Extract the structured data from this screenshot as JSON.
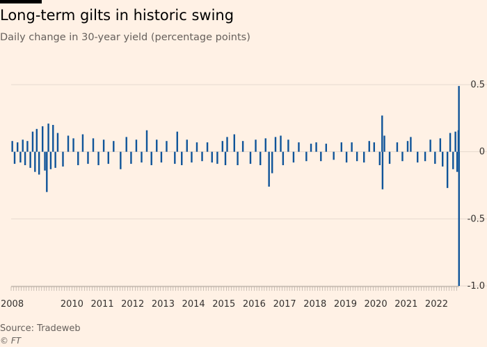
{
  "header": {
    "title": "Long-term gilts in historic swing",
    "subtitle": "Daily change in 30-year yield (percentage points)"
  },
  "footer": {
    "source": "Source: Tradeweb",
    "copyright": "© FT"
  },
  "colors": {
    "background": "#fff1e5",
    "series": "#0f5499",
    "grid": "#e6d9ce",
    "text": "#33302e"
  },
  "chart_data": {
    "type": "bar",
    "title": "Long-term gilts in historic swing",
    "subtitle": "Daily change in 30-year yield (percentage points)",
    "xlabel": "",
    "ylabel": "",
    "ylim": [
      -1.0,
      0.5
    ],
    "xlim": [
      "2008-01-01",
      "2022-09-30"
    ],
    "grid": true,
    "y_axis_side": "right",
    "yticks": [
      {
        "value": 0.5,
        "label": "0.5"
      },
      {
        "value": 0,
        "label": "0"
      },
      {
        "value": -0.5,
        "label": "-0.5"
      },
      {
        "value": -1.0,
        "label": "-1.0"
      }
    ],
    "xticks": [
      {
        "date": "2008-01-01",
        "label": "2008"
      },
      {
        "date": "2010-01-01",
        "label": "2010"
      },
      {
        "date": "2011-01-01",
        "label": "2011"
      },
      {
        "date": "2012-01-01",
        "label": "2012"
      },
      {
        "date": "2013-01-01",
        "label": "2013"
      },
      {
        "date": "2014-01-01",
        "label": "2014"
      },
      {
        "date": "2015-01-01",
        "label": "2015"
      },
      {
        "date": "2016-01-01",
        "label": "2016"
      },
      {
        "date": "2017-01-01",
        "label": "2017"
      },
      {
        "date": "2018-01-01",
        "label": "2018"
      },
      {
        "date": "2019-01-01",
        "label": "2019"
      },
      {
        "date": "2020-01-01",
        "label": "2020"
      },
      {
        "date": "2021-01-01",
        "label": "2021"
      },
      {
        "date": "2022-01-01",
        "label": "2022"
      }
    ],
    "series": [
      {
        "points": [
          {
            "date": "2008-01-15",
            "value": 0.08
          },
          {
            "date": "2008-02-12",
            "value": -0.09
          },
          {
            "date": "2008-03-18",
            "value": 0.07
          },
          {
            "date": "2008-04-22",
            "value": -0.08
          },
          {
            "date": "2008-05-20",
            "value": 0.09
          },
          {
            "date": "2008-06-17",
            "value": -0.1
          },
          {
            "date": "2008-07-15",
            "value": 0.08
          },
          {
            "date": "2008-08-19",
            "value": -0.12
          },
          {
            "date": "2008-09-16",
            "value": 0.15
          },
          {
            "date": "2008-10-14",
            "value": -0.15
          },
          {
            "date": "2008-11-04",
            "value": 0.17
          },
          {
            "date": "2008-12-02",
            "value": -0.17
          },
          {
            "date": "2009-01-13",
            "value": 0.19
          },
          {
            "date": "2009-02-10",
            "value": -0.14
          },
          {
            "date": "2009-03-05",
            "value": -0.3
          },
          {
            "date": "2009-03-24",
            "value": 0.21
          },
          {
            "date": "2009-04-21",
            "value": -0.13
          },
          {
            "date": "2009-05-19",
            "value": 0.2
          },
          {
            "date": "2009-06-16",
            "value": -0.12
          },
          {
            "date": "2009-07-14",
            "value": 0.14
          },
          {
            "date": "2009-09-15",
            "value": -0.11
          },
          {
            "date": "2009-11-17",
            "value": 0.12
          },
          {
            "date": "2010-01-19",
            "value": 0.1
          },
          {
            "date": "2010-03-16",
            "value": -0.1
          },
          {
            "date": "2010-05-11",
            "value": 0.13
          },
          {
            "date": "2010-07-13",
            "value": -0.09
          },
          {
            "date": "2010-09-14",
            "value": 0.1
          },
          {
            "date": "2010-11-16",
            "value": -0.1
          },
          {
            "date": "2011-01-18",
            "value": 0.09
          },
          {
            "date": "2011-03-15",
            "value": -0.09
          },
          {
            "date": "2011-05-17",
            "value": 0.08
          },
          {
            "date": "2011-08-09",
            "value": -0.13
          },
          {
            "date": "2011-10-18",
            "value": 0.11
          },
          {
            "date": "2011-12-13",
            "value": -0.09
          },
          {
            "date": "2012-02-14",
            "value": 0.09
          },
          {
            "date": "2012-04-17",
            "value": -0.08
          },
          {
            "date": "2012-06-19",
            "value": 0.16
          },
          {
            "date": "2012-08-14",
            "value": -0.1
          },
          {
            "date": "2012-10-16",
            "value": 0.09
          },
          {
            "date": "2012-12-11",
            "value": -0.08
          },
          {
            "date": "2013-02-12",
            "value": 0.08
          },
          {
            "date": "2013-05-22",
            "value": -0.09
          },
          {
            "date": "2013-06-20",
            "value": 0.15
          },
          {
            "date": "2013-08-13",
            "value": -0.1
          },
          {
            "date": "2013-10-15",
            "value": 0.09
          },
          {
            "date": "2013-12-10",
            "value": -0.08
          },
          {
            "date": "2014-02-11",
            "value": 0.07
          },
          {
            "date": "2014-04-15",
            "value": -0.07
          },
          {
            "date": "2014-06-17",
            "value": 0.07
          },
          {
            "date": "2014-08-12",
            "value": -0.08
          },
          {
            "date": "2014-10-15",
            "value": -0.09
          },
          {
            "date": "2014-12-16",
            "value": 0.08
          },
          {
            "date": "2015-01-20",
            "value": -0.1
          },
          {
            "date": "2015-02-10",
            "value": 0.11
          },
          {
            "date": "2015-05-07",
            "value": 0.13
          },
          {
            "date": "2015-06-16",
            "value": -0.1
          },
          {
            "date": "2015-08-18",
            "value": 0.08
          },
          {
            "date": "2015-11-17",
            "value": -0.09
          },
          {
            "date": "2016-01-19",
            "value": 0.09
          },
          {
            "date": "2016-03-15",
            "value": -0.1
          },
          {
            "date": "2016-05-17",
            "value": 0.1
          },
          {
            "date": "2016-06-27",
            "value": -0.26
          },
          {
            "date": "2016-08-04",
            "value": -0.16
          },
          {
            "date": "2016-09-13",
            "value": 0.11
          },
          {
            "date": "2016-11-15",
            "value": 0.12
          },
          {
            "date": "2016-12-13",
            "value": -0.1
          },
          {
            "date": "2017-02-14",
            "value": 0.09
          },
          {
            "date": "2017-04-18",
            "value": -0.08
          },
          {
            "date": "2017-06-20",
            "value": 0.07
          },
          {
            "date": "2017-09-19",
            "value": -0.07
          },
          {
            "date": "2017-11-14",
            "value": 0.06
          },
          {
            "date": "2018-01-16",
            "value": 0.07
          },
          {
            "date": "2018-03-13",
            "value": -0.07
          },
          {
            "date": "2018-05-15",
            "value": 0.06
          },
          {
            "date": "2018-08-14",
            "value": -0.06
          },
          {
            "date": "2018-11-15",
            "value": 0.07
          },
          {
            "date": "2019-01-15",
            "value": -0.08
          },
          {
            "date": "2019-03-19",
            "value": 0.07
          },
          {
            "date": "2019-05-21",
            "value": -0.07
          },
          {
            "date": "2019-08-13",
            "value": -0.08
          },
          {
            "date": "2019-10-15",
            "value": 0.08
          },
          {
            "date": "2019-12-13",
            "value": 0.07
          },
          {
            "date": "2020-02-18",
            "value": -0.1
          },
          {
            "date": "2020-03-18",
            "value": 0.27
          },
          {
            "date": "2020-03-23",
            "value": -0.28
          },
          {
            "date": "2020-04-14",
            "value": 0.12
          },
          {
            "date": "2020-06-16",
            "value": -0.09
          },
          {
            "date": "2020-09-15",
            "value": 0.07
          },
          {
            "date": "2020-11-17",
            "value": -0.07
          },
          {
            "date": "2021-01-19",
            "value": 0.08
          },
          {
            "date": "2021-02-25",
            "value": 0.11
          },
          {
            "date": "2021-05-18",
            "value": -0.08
          },
          {
            "date": "2021-08-17",
            "value": -0.07
          },
          {
            "date": "2021-10-19",
            "value": 0.09
          },
          {
            "date": "2021-12-14",
            "value": -0.09
          },
          {
            "date": "2022-02-15",
            "value": 0.1
          },
          {
            "date": "2022-03-15",
            "value": -0.11
          },
          {
            "date": "2022-05-12",
            "value": -0.27
          },
          {
            "date": "2022-06-14",
            "value": 0.14
          },
          {
            "date": "2022-07-19",
            "value": -0.13
          },
          {
            "date": "2022-08-16",
            "value": 0.15
          },
          {
            "date": "2022-09-06",
            "value": -0.15
          },
          {
            "date": "2022-09-21",
            "value": 0.16
          },
          {
            "date": "2022-09-27",
            "value": 0.49
          },
          {
            "date": "2022-09-28",
            "value": -1.0
          }
        ]
      }
    ]
  }
}
